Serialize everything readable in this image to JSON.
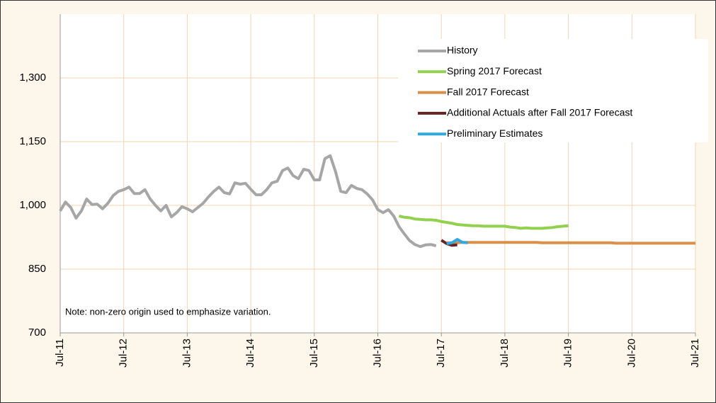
{
  "chart_data": {
    "type": "line",
    "categories": [
      "Jul-11",
      null,
      null,
      null,
      null,
      null,
      null,
      null,
      null,
      null,
      null,
      null,
      "Jul-12",
      null,
      null,
      null,
      null,
      null,
      null,
      null,
      null,
      null,
      null,
      null,
      "Jul-13",
      null,
      null,
      null,
      null,
      null,
      null,
      null,
      null,
      null,
      null,
      null,
      "Jul-14",
      null,
      null,
      null,
      null,
      null,
      null,
      null,
      null,
      null,
      null,
      null,
      "Jul-15",
      null,
      null,
      null,
      null,
      null,
      null,
      null,
      null,
      null,
      null,
      null,
      "Jul-16",
      null,
      null,
      null,
      null,
      null,
      null,
      null,
      null,
      null,
      null,
      null,
      "Jul-17",
      null,
      null,
      null,
      null,
      null,
      null,
      null,
      null,
      null,
      null,
      null,
      "Jul-18",
      null,
      null,
      null,
      null,
      null,
      null,
      null,
      null,
      null,
      null,
      null,
      "Jul-19",
      null,
      null,
      null,
      null,
      null,
      null,
      null,
      null,
      null,
      null,
      null,
      "Jul-20",
      null,
      null,
      null,
      null,
      null,
      null,
      null,
      null,
      null,
      null,
      null,
      "Jul-21"
    ],
    "series": [
      {
        "name": "History",
        "color": "#a6a6a6",
        "values": [
          987,
          1008,
          995,
          970,
          987,
          1015,
          1002,
          1003,
          992,
          1005,
          1023,
          1033,
          1037,
          1043,
          1028,
          1028,
          1037,
          1015,
          1000,
          987,
          1000,
          973,
          983,
          997,
          992,
          985,
          995,
          1005,
          1020,
          1033,
          1043,
          1030,
          1027,
          1053,
          1050,
          1052,
          1038,
          1025,
          1025,
          1037,
          1053,
          1057,
          1082,
          1088,
          1070,
          1063,
          1085,
          1082,
          1060,
          1060,
          1110,
          1117,
          1080,
          1033,
          1030,
          1047,
          1040,
          1037,
          1027,
          1013,
          990,
          983,
          990,
          975,
          950,
          933,
          917,
          908,
          903,
          907,
          908,
          905,
          null,
          null,
          null,
          null,
          null,
          null,
          null,
          null,
          null,
          null,
          null,
          null,
          null,
          null,
          null,
          null,
          null,
          null,
          null,
          null,
          null,
          null,
          null,
          null,
          null,
          null,
          null,
          null,
          null,
          null,
          null,
          null,
          null,
          null,
          null,
          null,
          null,
          null,
          null,
          null,
          null,
          null,
          null,
          null,
          null,
          null,
          null,
          null,
          null
        ]
      },
      {
        "name": "Spring 2017 Forecast",
        "color": "#92d050",
        "values": [
          null,
          null,
          null,
          null,
          null,
          null,
          null,
          null,
          null,
          null,
          null,
          null,
          null,
          null,
          null,
          null,
          null,
          null,
          null,
          null,
          null,
          null,
          null,
          null,
          null,
          null,
          null,
          null,
          null,
          null,
          null,
          null,
          null,
          null,
          null,
          null,
          null,
          null,
          null,
          null,
          null,
          null,
          null,
          null,
          null,
          null,
          null,
          null,
          null,
          null,
          null,
          null,
          null,
          null,
          null,
          null,
          null,
          null,
          null,
          null,
          null,
          null,
          null,
          null,
          975,
          972,
          971,
          968,
          967,
          966,
          966,
          965,
          962,
          960,
          958,
          955,
          954,
          953,
          952,
          952,
          951,
          951,
          951,
          951,
          951,
          949,
          948,
          946,
          947,
          946,
          946,
          946,
          947,
          948,
          950,
          951,
          952,
          null,
          null,
          null,
          null,
          null,
          null,
          null,
          null,
          null,
          null,
          null,
          null,
          null,
          null,
          null,
          null,
          null,
          null,
          null,
          null,
          null,
          null,
          null,
          null
        ]
      },
      {
        "name": "Fall 2017 Forecast",
        "color": "#d9904a",
        "values": [
          null,
          null,
          null,
          null,
          null,
          null,
          null,
          null,
          null,
          null,
          null,
          null,
          null,
          null,
          null,
          null,
          null,
          null,
          null,
          null,
          null,
          null,
          null,
          null,
          null,
          null,
          null,
          null,
          null,
          null,
          null,
          null,
          null,
          null,
          null,
          null,
          null,
          null,
          null,
          null,
          null,
          null,
          null,
          null,
          null,
          null,
          null,
          null,
          null,
          null,
          null,
          null,
          null,
          null,
          null,
          null,
          null,
          null,
          null,
          null,
          null,
          null,
          null,
          null,
          null,
          null,
          null,
          null,
          null,
          null,
          null,
          null,
          null,
          912,
          912,
          912,
          913,
          913,
          913,
          913,
          913,
          913,
          913,
          913,
          913,
          913,
          913,
          913,
          913,
          913,
          913,
          912,
          912,
          912,
          912,
          912,
          912,
          912,
          912,
          912,
          912,
          912,
          912,
          912,
          912,
          911,
          911,
          911,
          911,
          911,
          911,
          911,
          911,
          911,
          911,
          911,
          911,
          911,
          911,
          911,
          911
        ]
      },
      {
        "name": "Additional Actuals after Fall 2017 Forecast",
        "color": "#632523",
        "values": [
          null,
          null,
          null,
          null,
          null,
          null,
          null,
          null,
          null,
          null,
          null,
          null,
          null,
          null,
          null,
          null,
          null,
          null,
          null,
          null,
          null,
          null,
          null,
          null,
          null,
          null,
          null,
          null,
          null,
          null,
          null,
          null,
          null,
          null,
          null,
          null,
          null,
          null,
          null,
          null,
          null,
          null,
          null,
          null,
          null,
          null,
          null,
          null,
          null,
          null,
          null,
          null,
          null,
          null,
          null,
          null,
          null,
          null,
          null,
          null,
          null,
          null,
          null,
          null,
          null,
          null,
          null,
          null,
          null,
          null,
          null,
          null,
          918,
          910,
          906,
          907,
          null,
          null,
          null,
          null,
          null,
          null,
          null,
          null,
          null,
          null,
          null,
          null,
          null,
          null,
          null,
          null,
          null,
          null,
          null,
          null,
          null,
          null,
          null,
          null,
          null,
          null,
          null,
          null,
          null,
          null,
          null,
          null,
          null,
          null,
          null,
          null,
          null,
          null,
          null,
          null,
          null,
          null,
          null,
          null,
          null
        ]
      },
      {
        "name": "Preliminary Estimates",
        "color": "#2eaae1",
        "values": [
          null,
          null,
          null,
          null,
          null,
          null,
          null,
          null,
          null,
          null,
          null,
          null,
          null,
          null,
          null,
          null,
          null,
          null,
          null,
          null,
          null,
          null,
          null,
          null,
          null,
          null,
          null,
          null,
          null,
          null,
          null,
          null,
          null,
          null,
          null,
          null,
          null,
          null,
          null,
          null,
          null,
          null,
          null,
          null,
          null,
          null,
          null,
          null,
          null,
          null,
          null,
          null,
          null,
          null,
          null,
          null,
          null,
          null,
          null,
          null,
          null,
          null,
          null,
          null,
          null,
          null,
          null,
          null,
          null,
          null,
          null,
          null,
          null,
          910,
          912,
          920,
          913,
          912,
          null,
          null,
          null,
          null,
          null,
          null,
          null,
          null,
          null,
          null,
          null,
          null,
          null,
          null,
          null,
          null,
          null,
          null,
          null,
          null,
          null,
          null,
          null,
          null,
          null,
          null,
          null,
          null,
          null,
          null,
          null,
          null,
          null,
          null,
          null,
          null,
          null,
          null,
          null,
          null,
          null,
          null,
          null
        ]
      }
    ],
    "ylim": [
      700,
      1450
    ],
    "yticks": [
      700,
      850,
      {
        "value": 1000,
        "label": "1,000"
      },
      {
        "value": 1150,
        "label": "1,150"
      },
      {
        "value": 1300,
        "label": "1,300"
      }
    ],
    "grid": true,
    "legend": "upper right",
    "annotation": "Note: non-zero origin used to emphasize variation."
  }
}
